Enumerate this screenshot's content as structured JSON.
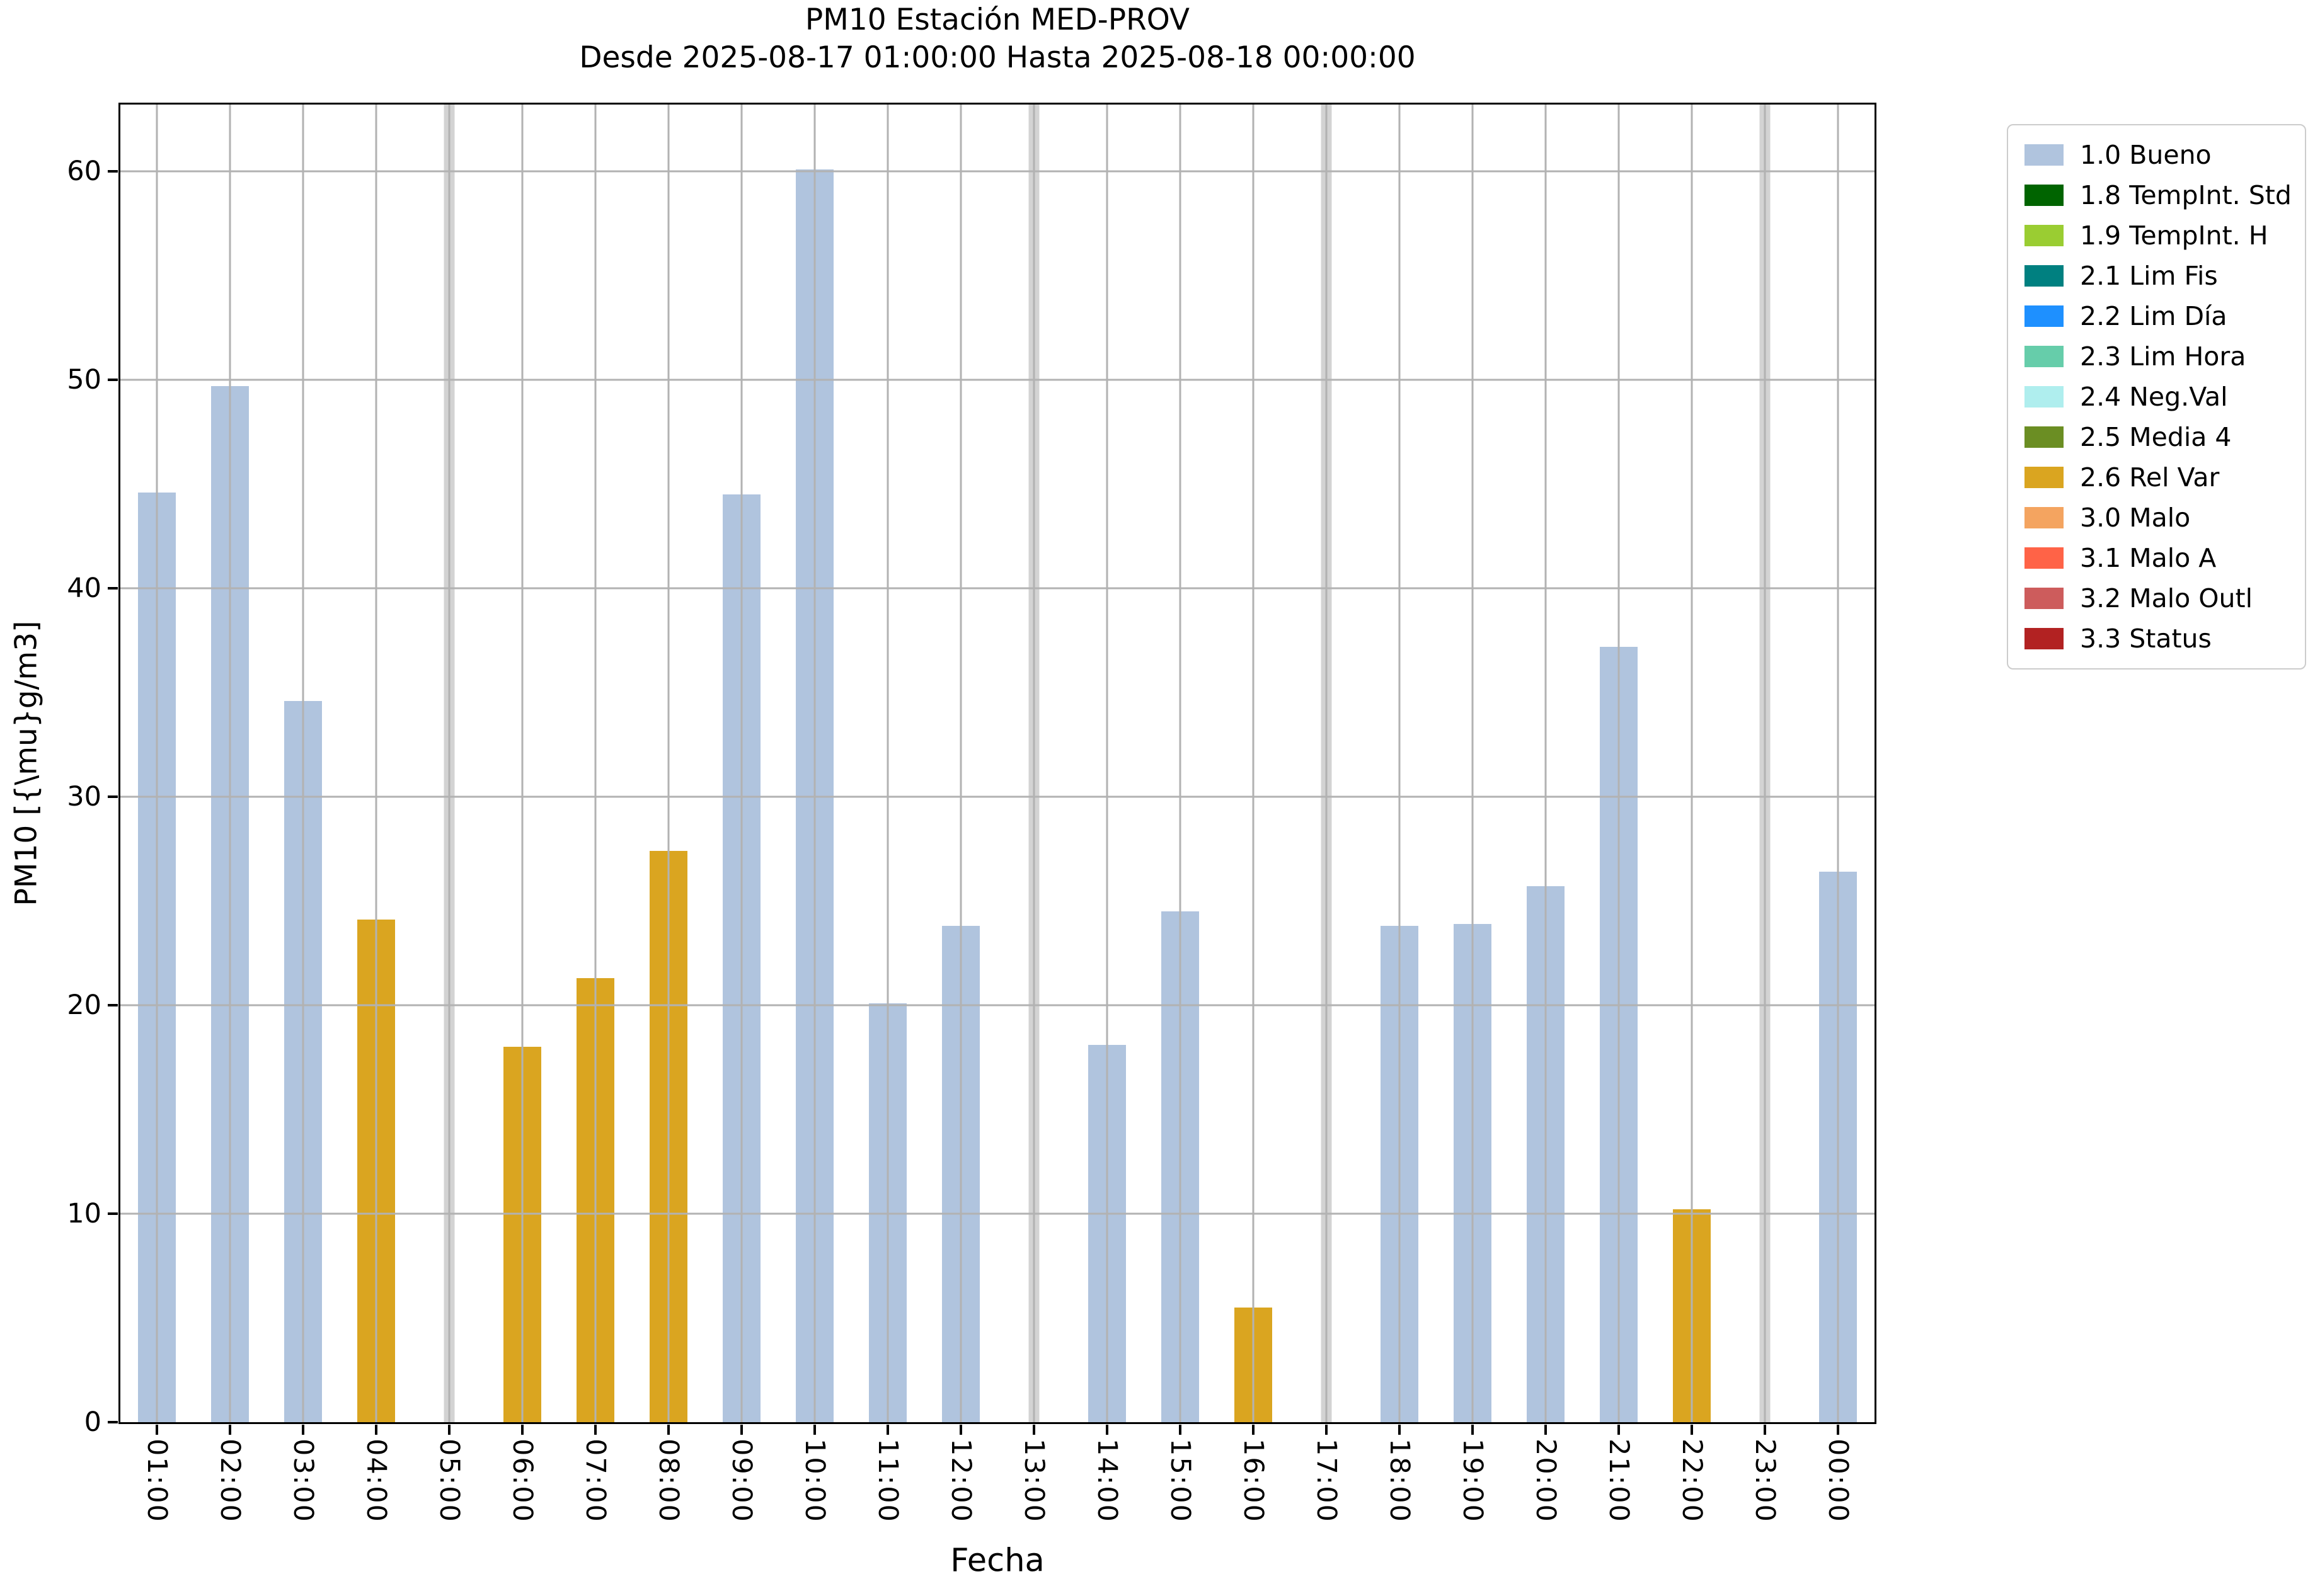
{
  "title": "PM10 Estación MED-PROV",
  "subtitle": "Desde 2025-08-17 01:00:00 Hasta 2025-08-18 00:00:00",
  "chart_data": {
    "type": "bar",
    "title": "PM10 Estación MED-PROV",
    "subtitle": "Desde 2025-08-17 01:00:00 Hasta 2025-08-18 00:00:00",
    "xlabel": "Fecha",
    "ylabel": "PM10 [{\\mu}g/m3]",
    "ylim": [
      0,
      63.2
    ],
    "yticks": [
      0,
      10,
      20,
      30,
      40,
      50,
      60
    ],
    "grid": true,
    "legend_position": "outside upper right",
    "categories": [
      "01:00",
      "02:00",
      "03:00",
      "04:00",
      "05:00",
      "06:00",
      "07:00",
      "08:00",
      "09:00",
      "10:00",
      "11:00",
      "12:00",
      "13:00",
      "14:00",
      "15:00",
      "16:00",
      "17:00",
      "18:00",
      "19:00",
      "20:00",
      "21:00",
      "22:00",
      "23:00",
      "00:00"
    ],
    "values": [
      44.6,
      49.7,
      34.6,
      24.1,
      null,
      18.0,
      21.3,
      27.4,
      44.5,
      60.1,
      20.1,
      23.8,
      null,
      18.1,
      24.5,
      5.5,
      null,
      23.8,
      23.9,
      25.7,
      37.2,
      10.2,
      null,
      26.4
    ],
    "bar_status": [
      "1.0 Bueno",
      "1.0 Bueno",
      "1.0 Bueno",
      "2.6 Rel Var",
      null,
      "2.6 Rel Var",
      "2.6 Rel Var",
      "2.6 Rel Var",
      "1.0 Bueno",
      "1.0 Bueno",
      "1.0 Bueno",
      "1.0 Bueno",
      null,
      "1.0 Bueno",
      "1.0 Bueno",
      "2.6 Rel Var",
      null,
      "1.0 Bueno",
      "1.0 Bueno",
      "1.0 Bueno",
      "1.0 Bueno",
      "2.6 Rel Var",
      null,
      "1.0 Bueno"
    ],
    "status_colors": {
      "1.0 Bueno": "#b0c4de",
      "2.6 Rel Var": "#daa520"
    },
    "missing_stripe_color": "#d3d3d3",
    "grid_color": "#b2b2b2",
    "legend": [
      {
        "label": "1.0 Bueno",
        "color": "#b0c4de"
      },
      {
        "label": "1.8 TempInt. Std",
        "color": "#006400"
      },
      {
        "label": "1.9 TempInt. H",
        "color": "#9acd32"
      },
      {
        "label": "2.1 Lim Fis",
        "color": "#008080"
      },
      {
        "label": "2.2 Lim Día",
        "color": "#1e90ff"
      },
      {
        "label": "2.3 Lim Hora",
        "color": "#66cdaa"
      },
      {
        "label": "2.4 Neg.Val",
        "color": "#afeeee"
      },
      {
        "label": "2.5 Media 4",
        "color": "#6b8e23"
      },
      {
        "label": "2.6 Rel Var",
        "color": "#daa520"
      },
      {
        "label": "3.0 Malo",
        "color": "#f4a460"
      },
      {
        "label": "3.1 Malo A",
        "color": "#ff6347"
      },
      {
        "label": "3.2 Malo Outl",
        "color": "#cd5c5c"
      },
      {
        "label": "3.3 Status",
        "color": "#b22222"
      }
    ]
  }
}
